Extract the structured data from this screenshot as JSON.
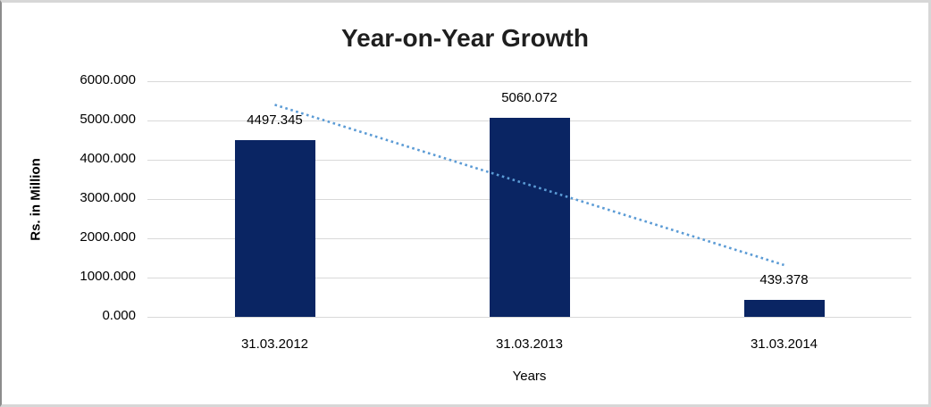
{
  "frame": {
    "background": "#FFFFFF",
    "border_color": "#D7D7D7"
  },
  "chart_data": {
    "type": "bar",
    "title": "Year-on-Year Growth",
    "categories": [
      "31.03.2012",
      "31.03.2013",
      "31.03.2014"
    ],
    "values": [
      4497.345,
      5060.072,
      439.378
    ],
    "data_labels": [
      "4497.345",
      "5060.072",
      "439.378"
    ],
    "xlabel": "Years",
    "ylabel": "Rs. in Million",
    "ylim": [
      0,
      6000
    ],
    "ytick_step": 1000,
    "ytick_labels": [
      "0.000",
      "1000.000",
      "2000.000",
      "3000.000",
      "4000.000",
      "5000.000",
      "6000.000"
    ],
    "grid": true,
    "legend": "none",
    "bar_color": "#0A2563",
    "gridline_color": "#D9D9D9",
    "text_color": "#000000",
    "trendline": {
      "type": "linear",
      "style": "dotted",
      "color": "#5B9BD5",
      "start_value": 5400,
      "end_value": 1320,
      "start_category_index": 0,
      "end_category_index": 2
    }
  }
}
